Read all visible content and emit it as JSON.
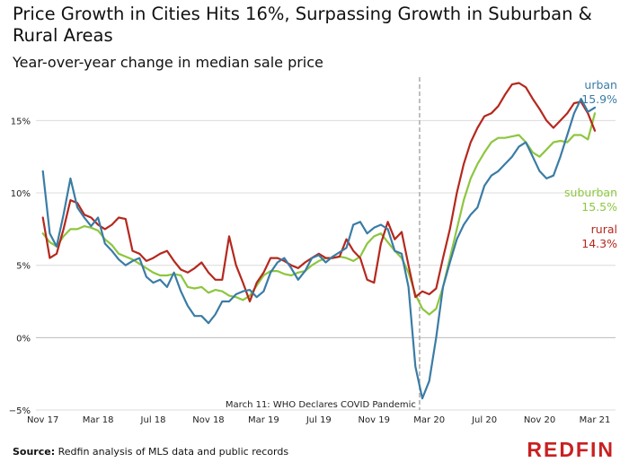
{
  "title": "Price Growth in Cities Hits 16%, Surpassing Growth in Suburban & Rural Areas",
  "subtitle": "Year-over-year change in median sale price",
  "annotation": "March 11: WHO Declares COVID Pandemic",
  "source_label": "Source:",
  "source_text": "Redfin analysis of MLS data and public records",
  "logo_text": "REDFIN",
  "colors": {
    "urban": "#3A7CA5",
    "suburban": "#8DC63F",
    "rural": "#B5281E",
    "logo": "#C82021",
    "grid": "#dcdcdc",
    "annotation_line": "#aaaaaa"
  },
  "chart_data": {
    "type": "line",
    "title": "Price Growth in Cities Hits 16%, Surpassing Growth in Suburban & Rural Areas",
    "subtitle": "Year-over-year change in median sale price",
    "xlabel": "",
    "ylabel": "",
    "ylim": [
      -5,
      18
    ],
    "yticks": [
      -5,
      0,
      5,
      10,
      15
    ],
    "ytick_labels": [
      "−5%",
      "0%",
      "5%",
      "10%",
      "15%"
    ],
    "xlim": [
      -0.5,
      41.5
    ],
    "xticks": [
      0,
      4,
      8,
      12,
      16,
      20,
      24,
      28,
      32,
      36,
      40
    ],
    "xtick_labels": [
      "Nov 17",
      "Mar 18",
      "Jul 18",
      "Nov 18",
      "Mar 19",
      "Jul 19",
      "Nov 19",
      "Mar 20",
      "Jul 20",
      "Nov 20",
      "Mar 21"
    ],
    "x_unit": "months since Nov 2017 (weekly points)",
    "vline_x": 27.3,
    "grid": true,
    "series": [
      {
        "name": "urban",
        "end_label": "15.9%",
        "x": [
          0,
          0.5,
          1,
          1.5,
          2,
          2.5,
          3,
          3.5,
          4,
          4.5,
          5,
          5.5,
          6,
          6.5,
          7,
          7.5,
          8,
          8.5,
          9,
          9.5,
          10,
          10.5,
          11,
          11.5,
          12,
          12.5,
          13,
          13.5,
          14,
          14.5,
          15,
          15.5,
          16,
          16.5,
          17,
          17.5,
          18,
          18.5,
          19,
          19.5,
          20,
          20.5,
          21,
          21.5,
          22,
          22.5,
          23,
          23.5,
          24,
          24.5,
          25,
          25.5,
          26,
          26.5,
          27,
          27.5,
          28,
          28.5,
          29,
          29.5,
          30,
          30.5,
          31,
          31.5,
          32,
          32.5,
          33,
          33.5,
          34,
          34.5,
          35,
          35.5,
          36,
          36.5,
          37,
          37.5,
          38,
          38.5,
          39,
          39.5,
          40
        ],
        "values": [
          11.5,
          7.2,
          6.3,
          8.5,
          11,
          9,
          8.3,
          7.7,
          8.3,
          6.5,
          6,
          5.4,
          5,
          5.3,
          5.5,
          4.2,
          3.8,
          4,
          3.5,
          4.5,
          3.2,
          2.2,
          1.5,
          1.5,
          1,
          1.6,
          2.5,
          2.5,
          3,
          3.2,
          3.3,
          2.8,
          3.2,
          4.5,
          5.2,
          5.5,
          4.8,
          4,
          4.6,
          5.5,
          5.7,
          5.2,
          5.6,
          5.9,
          6.2,
          7.8,
          8,
          7.2,
          7.6,
          7.8,
          7.5,
          6,
          5.8,
          3.5,
          -2,
          -4.2,
          -3,
          0,
          3.5,
          5.2,
          6.8,
          7.8,
          8.5,
          9,
          10.5,
          11.2,
          11.5,
          12,
          12.5,
          13.2,
          13.5,
          12.5,
          11.5,
          11,
          11.2,
          12.5,
          14,
          15.5,
          16.5,
          15.6,
          15.9
        ]
      },
      {
        "name": "suburban",
        "end_label": "15.5%",
        "x": [
          0,
          0.5,
          1,
          1.5,
          2,
          2.5,
          3,
          3.5,
          4,
          4.5,
          5,
          5.5,
          6,
          6.5,
          7,
          7.5,
          8,
          8.5,
          9,
          9.5,
          10,
          10.5,
          11,
          11.5,
          12,
          12.5,
          13,
          13.5,
          14,
          14.5,
          15,
          15.5,
          16,
          16.5,
          17,
          17.5,
          18,
          18.5,
          19,
          19.5,
          20,
          20.5,
          21,
          21.5,
          22,
          22.5,
          23,
          23.5,
          24,
          24.5,
          25,
          25.5,
          26,
          26.5,
          27,
          27.5,
          28,
          28.5,
          29,
          29.5,
          30,
          30.5,
          31,
          31.5,
          32,
          32.5,
          33,
          33.5,
          34,
          34.5,
          35,
          35.5,
          36,
          36.5,
          37,
          37.5,
          38,
          38.5,
          39,
          39.5,
          40
        ],
        "values": [
          7.2,
          6.6,
          6.3,
          7,
          7.5,
          7.5,
          7.7,
          7.6,
          7.4,
          6.8,
          6.4,
          5.8,
          5.6,
          5.4,
          5.1,
          4.8,
          4.5,
          4.3,
          4.3,
          4.4,
          4.3,
          3.5,
          3.4,
          3.5,
          3.1,
          3.3,
          3.2,
          2.9,
          2.8,
          2.6,
          2.9,
          3.6,
          4.3,
          4.6,
          4.6,
          4.4,
          4.3,
          4.5,
          4.6,
          5,
          5.3,
          5.5,
          5.5,
          5.6,
          5.5,
          5.3,
          5.6,
          6.5,
          7,
          7.2,
          6.6,
          6,
          5.5,
          4.5,
          3,
          2,
          1.6,
          2,
          3.5,
          5.5,
          7.5,
          9.5,
          11,
          12,
          12.8,
          13.5,
          13.8,
          13.8,
          13.9,
          14,
          13.5,
          12.8,
          12.5,
          13,
          13.5,
          13.6,
          13.5,
          14,
          14,
          13.7,
          15.5
        ]
      },
      {
        "name": "rural",
        "end_label": "14.3%",
        "x": [
          0,
          0.5,
          1,
          1.5,
          2,
          2.5,
          3,
          3.5,
          4,
          4.5,
          5,
          5.5,
          6,
          6.5,
          7,
          7.5,
          8,
          8.5,
          9,
          9.5,
          10,
          10.5,
          11,
          11.5,
          12,
          12.5,
          13,
          13.5,
          14,
          14.5,
          15,
          15.5,
          16,
          16.5,
          17,
          17.5,
          18,
          18.5,
          19,
          19.5,
          20,
          20.5,
          21,
          21.5,
          22,
          22.5,
          23,
          23.5,
          24,
          24.5,
          25,
          25.5,
          26,
          26.5,
          27,
          27.5,
          28,
          28.5,
          29,
          29.5,
          30,
          30.5,
          31,
          31.5,
          32,
          32.5,
          33,
          33.5,
          34,
          34.5,
          35,
          35.5,
          36,
          36.5,
          37,
          37.5,
          38,
          38.5,
          39,
          39.5,
          40
        ],
        "values": [
          8.3,
          5.5,
          5.8,
          7.5,
          9.5,
          9.3,
          8.5,
          8.3,
          7.8,
          7.5,
          7.8,
          8.3,
          8.2,
          6,
          5.8,
          5.3,
          5.5,
          5.8,
          6,
          5.3,
          4.7,
          4.5,
          4.8,
          5.2,
          4.5,
          4,
          4,
          7,
          5,
          3.8,
          2.5,
          3.8,
          4.5,
          5.5,
          5.5,
          5.3,
          5,
          4.8,
          5.2,
          5.5,
          5.8,
          5.5,
          5.5,
          5.6,
          6.8,
          6,
          5.5,
          4,
          3.8,
          6.5,
          8,
          6.8,
          7.3,
          5,
          2.8,
          3.2,
          3,
          3.4,
          5.5,
          7.5,
          10,
          12,
          13.5,
          14.5,
          15.3,
          15.5,
          16,
          16.8,
          17.5,
          17.6,
          17.3,
          16.5,
          15.8,
          15,
          14.5,
          15,
          15.5,
          16.2,
          16.3,
          15.5,
          14.3
        ]
      }
    ]
  }
}
